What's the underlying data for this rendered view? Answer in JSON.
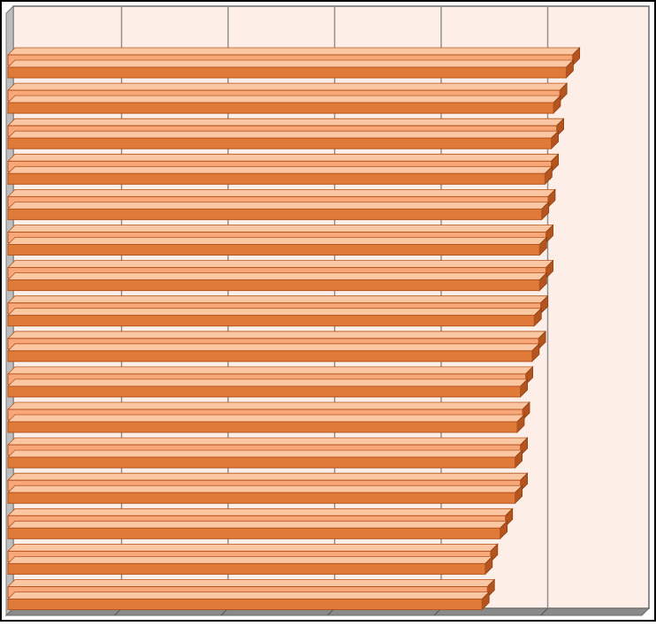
{
  "chart_data": {
    "type": "bar",
    "orientation": "horizontal",
    "style": "3d-clustered",
    "title": "",
    "xlabel": "",
    "ylabel": "",
    "categories": [
      "",
      "",
      "",
      "",
      "",
      "",
      "",
      "",
      "",
      "",
      "",
      "",
      "",
      "",
      "",
      ""
    ],
    "series": [
      {
        "values": [
          5.3,
          5.18,
          5.15,
          5.1,
          5.07,
          5.05,
          5.05,
          5.0,
          4.98,
          4.86,
          4.83,
          4.81,
          4.81,
          4.67,
          4.53,
          4.5
        ]
      },
      {
        "values": [
          5.24,
          5.12,
          5.1,
          5.04,
          5.01,
          4.99,
          4.99,
          4.94,
          4.92,
          4.81,
          4.78,
          4.76,
          4.76,
          4.62,
          4.48,
          4.45
        ]
      }
    ],
    "xlim": [
      0,
      6
    ],
    "grid": "vertical",
    "legend": "none",
    "colors": {
      "plot_background": "#fdefe8",
      "frame": "#000000",
      "floor": "#8a8a8a",
      "gridline": "#909090",
      "series_light": "#f8a878",
      "series_dark": "#e07a38",
      "bar_side": "#b4541e",
      "bar_top": "#fbc7a3"
    }
  }
}
